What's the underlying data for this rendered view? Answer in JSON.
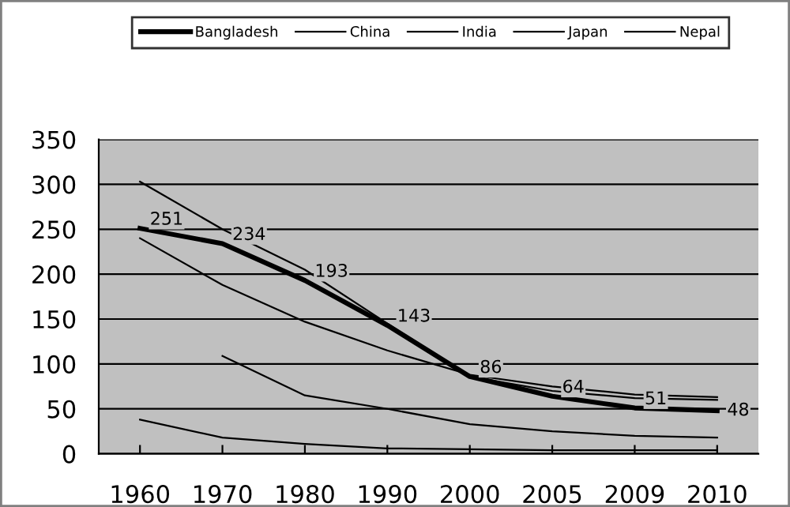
{
  "chart_data": {
    "type": "line",
    "categories": [
      "1960",
      "1970",
      "1980",
      "1990",
      "2000",
      "2005",
      "2009",
      "2010"
    ],
    "series": [
      {
        "name": "Bangladesh",
        "color": "#000000",
        "values": [
          251,
          234,
          193,
          143,
          86,
          64,
          51,
          48
        ],
        "value_labels": [
          "251",
          "234",
          "193",
          "143",
          "86",
          "64",
          "51",
          "48"
        ]
      },
      {
        "name": "China",
        "color": "#000000",
        "values": [
          null,
          109,
          65,
          50,
          33,
          25,
          20,
          18
        ]
      },
      {
        "name": "India",
        "color": "#000000",
        "values": [
          240,
          188,
          147,
          115,
          88,
          75,
          66,
          63
        ]
      },
      {
        "name": "Japan",
        "color": "#000000",
        "values": [
          38,
          18,
          11,
          6,
          5,
          4,
          4,
          4
        ]
      },
      {
        "name": "Nepal",
        "color": "#000000",
        "values": [
          303,
          250,
          205,
          145,
          86,
          70,
          62,
          60
        ]
      }
    ],
    "ylim": [
      0,
      350
    ],
    "yticks": [
      0,
      50,
      100,
      150,
      200,
      250,
      300,
      350
    ],
    "grid": "y",
    "legend": "top",
    "marker": "none",
    "line_style": "solid"
  }
}
